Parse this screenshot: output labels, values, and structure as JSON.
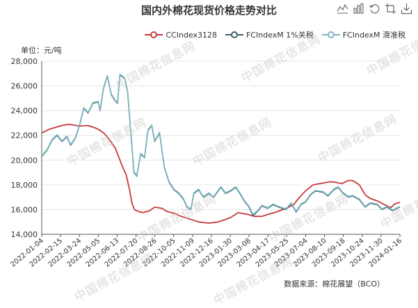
{
  "title": "国内外棉花现货价格走势对比",
  "unit_label": "单位：元/吨",
  "source_label": "数据来源：棉花展望（BCO）",
  "watermark_text": "中国棉花信息网",
  "toolbox": [
    "line-chart-icon",
    "bar-chart-icon",
    "restore-icon",
    "crop-icon",
    "download-icon"
  ],
  "legend": [
    {
      "name": "CCIndex3128",
      "color": "#c8383d"
    },
    {
      "name": "FCIndexM 1%关税",
      "color": "#3f5d6b"
    },
    {
      "name": "FCIndexM 滑准税",
      "color": "#7ab8c2"
    }
  ],
  "chart_data": {
    "type": "line",
    "title": "国内外棉花现货价格走势对比",
    "ylabel": "单位：元/吨",
    "ylim": [
      14000,
      28000
    ],
    "yticks": [
      14000,
      16000,
      18000,
      20000,
      22000,
      24000,
      26000,
      28000
    ],
    "ytick_labels": [
      "14,000",
      "16,000",
      "18,000",
      "20,000",
      "22,000",
      "24,000",
      "26,000",
      "28,000"
    ],
    "xlim": [
      "2022-01-04",
      "2024-01-16"
    ],
    "xtick_labels": [
      "2022-01-04",
      "2022-02-15",
      "2022-03-24",
      "2022-05-05",
      "2022-06-13",
      "2022-07-20",
      "2022-08-26",
      "2022-10-05",
      "2022-11-09",
      "2022-12-16",
      "2023-01-30",
      "2023-03-08",
      "2023-04-17",
      "2023-05-25",
      "2023-07-04",
      "2023-08-10",
      "2023-09-18",
      "2023-10-24",
      "2023-11-30",
      "2024-01-16"
    ],
    "grid": true,
    "legend_position": "top-right",
    "series": [
      {
        "name": "CCIndex3128",
        "color": "#c8383d",
        "points": [
          [
            "2022-01-04",
            22200
          ],
          [
            "2022-01-20",
            22500
          ],
          [
            "2022-02-15",
            22800
          ],
          [
            "2022-03-01",
            22900
          ],
          [
            "2022-03-24",
            22750
          ],
          [
            "2022-04-10",
            22800
          ],
          [
            "2022-04-25",
            22600
          ],
          [
            "2022-05-05",
            22400
          ],
          [
            "2022-05-15",
            22100
          ],
          [
            "2022-05-25",
            21600
          ],
          [
            "2022-06-05",
            21000
          ],
          [
            "2022-06-13",
            20200
          ],
          [
            "2022-06-20",
            19500
          ],
          [
            "2022-06-28",
            18800
          ],
          [
            "2022-07-05",
            17600
          ],
          [
            "2022-07-10",
            16500
          ],
          [
            "2022-07-15",
            16000
          ],
          [
            "2022-07-20",
            15900
          ],
          [
            "2022-08-01",
            15750
          ],
          [
            "2022-08-15",
            15900
          ],
          [
            "2022-08-26",
            16200
          ],
          [
            "2022-09-10",
            16100
          ],
          [
            "2022-09-20",
            15850
          ],
          [
            "2022-10-05",
            15700
          ],
          [
            "2022-10-20",
            15450
          ],
          [
            "2022-11-09",
            15200
          ],
          [
            "2022-11-25",
            15000
          ],
          [
            "2022-12-16",
            14900
          ],
          [
            "2023-01-05",
            15000
          ],
          [
            "2023-01-30",
            15350
          ],
          [
            "2023-02-15",
            15750
          ],
          [
            "2023-03-08",
            15600
          ],
          [
            "2023-03-20",
            15450
          ],
          [
            "2023-04-05",
            15450
          ],
          [
            "2023-04-17",
            15600
          ],
          [
            "2023-05-05",
            15800
          ],
          [
            "2023-05-25",
            16100
          ],
          [
            "2023-06-10",
            16400
          ],
          [
            "2023-06-20",
            16900
          ],
          [
            "2023-07-04",
            17500
          ],
          [
            "2023-07-20",
            18000
          ],
          [
            "2023-08-10",
            18150
          ],
          [
            "2023-08-25",
            18250
          ],
          [
            "2023-09-05",
            18200
          ],
          [
            "2023-09-18",
            18100
          ],
          [
            "2023-10-01",
            18350
          ],
          [
            "2023-10-10",
            18350
          ],
          [
            "2023-10-24",
            18000
          ],
          [
            "2023-11-05",
            17200
          ],
          [
            "2023-11-15",
            16900
          ],
          [
            "2023-11-30",
            16700
          ],
          [
            "2023-12-15",
            16400
          ],
          [
            "2023-12-28",
            16150
          ],
          [
            "2024-01-05",
            16450
          ],
          [
            "2024-01-16",
            16600
          ]
        ]
      },
      {
        "name": "FCIndexM 1%关税",
        "color": "#3f5d6b",
        "points": [
          [
            "2022-01-04",
            20300
          ],
          [
            "2022-01-15",
            20800
          ],
          [
            "2022-01-25",
            21600
          ],
          [
            "2022-02-05",
            22000
          ],
          [
            "2022-02-15",
            21500
          ],
          [
            "2022-02-25",
            21900
          ],
          [
            "2022-03-05",
            21200
          ],
          [
            "2022-03-15",
            21800
          ],
          [
            "2022-03-24",
            22900
          ],
          [
            "2022-04-01",
            24200
          ],
          [
            "2022-04-10",
            23800
          ],
          [
            "2022-04-20",
            24600
          ],
          [
            "2022-05-01",
            24700
          ],
          [
            "2022-05-05",
            24000
          ],
          [
            "2022-05-12",
            25800
          ],
          [
            "2022-05-20",
            26800
          ],
          [
            "2022-05-28",
            25300
          ],
          [
            "2022-06-05",
            24800
          ],
          [
            "2022-06-10",
            24600
          ],
          [
            "2022-06-15",
            26900
          ],
          [
            "2022-06-25",
            26600
          ],
          [
            "2022-07-01",
            25500
          ],
          [
            "2022-07-08",
            22000
          ],
          [
            "2022-07-14",
            19000
          ],
          [
            "2022-07-20",
            18700
          ],
          [
            "2022-07-28",
            20500
          ],
          [
            "2022-08-05",
            20200
          ],
          [
            "2022-08-12",
            22400
          ],
          [
            "2022-08-20",
            22800
          ],
          [
            "2022-08-26",
            21500
          ],
          [
            "2022-09-05",
            22200
          ],
          [
            "2022-09-15",
            19400
          ],
          [
            "2022-09-25",
            18200
          ],
          [
            "2022-10-05",
            17600
          ],
          [
            "2022-10-15",
            17300
          ],
          [
            "2022-10-25",
            16800
          ],
          [
            "2022-11-01",
            16200
          ],
          [
            "2022-11-09",
            16000
          ],
          [
            "2022-11-15",
            17300
          ],
          [
            "2022-11-25",
            17600
          ],
          [
            "2022-12-05",
            17000
          ],
          [
            "2022-12-16",
            17300
          ],
          [
            "2022-12-26",
            17000
          ],
          [
            "2023-01-10",
            17800
          ],
          [
            "2023-01-20",
            17300
          ],
          [
            "2023-01-30",
            17500
          ],
          [
            "2023-02-10",
            17800
          ],
          [
            "2023-02-20",
            17200
          ],
          [
            "2023-03-01",
            16600
          ],
          [
            "2023-03-08",
            16300
          ],
          [
            "2023-03-18",
            15500
          ],
          [
            "2023-03-28",
            15900
          ],
          [
            "2023-04-05",
            16300
          ],
          [
            "2023-04-17",
            16100
          ],
          [
            "2023-04-28",
            16400
          ],
          [
            "2023-05-10",
            16200
          ],
          [
            "2023-05-25",
            16000
          ],
          [
            "2023-06-05",
            16500
          ],
          [
            "2023-06-15",
            15800
          ],
          [
            "2023-06-25",
            16400
          ],
          [
            "2023-07-04",
            16600
          ],
          [
            "2023-07-15",
            17200
          ],
          [
            "2023-07-25",
            17500
          ],
          [
            "2023-08-10",
            17400
          ],
          [
            "2023-08-20",
            17100
          ],
          [
            "2023-09-01",
            17600
          ],
          [
            "2023-09-10",
            17800
          ],
          [
            "2023-09-18",
            17400
          ],
          [
            "2023-10-01",
            17000
          ],
          [
            "2023-10-10",
            17100
          ],
          [
            "2023-10-24",
            16800
          ],
          [
            "2023-11-05",
            16200
          ],
          [
            "2023-11-15",
            16500
          ],
          [
            "2023-11-30",
            16400
          ],
          [
            "2023-12-10",
            16000
          ],
          [
            "2023-12-20",
            16200
          ],
          [
            "2024-01-01",
            15900
          ],
          [
            "2024-01-10",
            16100
          ],
          [
            "2024-01-16",
            16200
          ]
        ]
      },
      {
        "name": "FCIndexM 滑准税",
        "color": "#7ab8c2",
        "points": [
          [
            "2022-01-04",
            20350
          ],
          [
            "2022-01-15",
            20850
          ],
          [
            "2022-01-25",
            21650
          ],
          [
            "2022-02-05",
            22050
          ],
          [
            "2022-02-15",
            21550
          ],
          [
            "2022-02-25",
            21950
          ],
          [
            "2022-03-05",
            21250
          ],
          [
            "2022-03-15",
            21850
          ],
          [
            "2022-03-24",
            22950
          ],
          [
            "2022-04-01",
            24250
          ],
          [
            "2022-04-10",
            23850
          ],
          [
            "2022-04-20",
            24650
          ],
          [
            "2022-05-01",
            24750
          ],
          [
            "2022-05-05",
            24050
          ],
          [
            "2022-05-12",
            25850
          ],
          [
            "2022-05-20",
            26850
          ],
          [
            "2022-05-28",
            25350
          ],
          [
            "2022-06-05",
            24850
          ],
          [
            "2022-06-10",
            24650
          ],
          [
            "2022-06-15",
            26950
          ],
          [
            "2022-06-25",
            26650
          ],
          [
            "2022-07-01",
            25550
          ],
          [
            "2022-07-08",
            22050
          ],
          [
            "2022-07-14",
            19050
          ],
          [
            "2022-07-20",
            18750
          ],
          [
            "2022-07-28",
            20550
          ],
          [
            "2022-08-05",
            20250
          ],
          [
            "2022-08-12",
            22450
          ],
          [
            "2022-08-20",
            22850
          ],
          [
            "2022-08-26",
            21550
          ],
          [
            "2022-09-05",
            22250
          ],
          [
            "2022-09-15",
            19450
          ],
          [
            "2022-09-25",
            18250
          ],
          [
            "2022-10-05",
            17650
          ],
          [
            "2022-10-15",
            17350
          ],
          [
            "2022-10-25",
            16850
          ],
          [
            "2022-11-01",
            16250
          ],
          [
            "2022-11-09",
            16050
          ],
          [
            "2022-11-15",
            17350
          ],
          [
            "2022-11-25",
            17650
          ],
          [
            "2022-12-05",
            17050
          ],
          [
            "2022-12-16",
            17350
          ],
          [
            "2022-12-26",
            17050
          ],
          [
            "2023-01-10",
            17850
          ],
          [
            "2023-01-20",
            17350
          ],
          [
            "2023-01-30",
            17550
          ],
          [
            "2023-02-10",
            17850
          ],
          [
            "2023-02-20",
            17250
          ],
          [
            "2023-03-01",
            16650
          ],
          [
            "2023-03-08",
            16350
          ],
          [
            "2023-03-18",
            15600
          ],
          [
            "2023-03-28",
            15950
          ],
          [
            "2023-04-05",
            16350
          ],
          [
            "2023-04-17",
            16150
          ],
          [
            "2023-04-28",
            16450
          ],
          [
            "2023-05-10",
            16250
          ],
          [
            "2023-05-25",
            16050
          ],
          [
            "2023-06-05",
            16550
          ],
          [
            "2023-06-15",
            15850
          ],
          [
            "2023-06-25",
            16450
          ],
          [
            "2023-07-04",
            16650
          ],
          [
            "2023-07-15",
            17250
          ],
          [
            "2023-07-25",
            17550
          ],
          [
            "2023-08-10",
            17450
          ],
          [
            "2023-08-20",
            17150
          ],
          [
            "2023-09-01",
            17650
          ],
          [
            "2023-09-10",
            17850
          ],
          [
            "2023-09-18",
            17450
          ],
          [
            "2023-10-01",
            17050
          ],
          [
            "2023-10-10",
            17150
          ],
          [
            "2023-10-24",
            16850
          ],
          [
            "2023-11-05",
            16250
          ],
          [
            "2023-11-15",
            16550
          ],
          [
            "2023-11-30",
            16450
          ],
          [
            "2023-12-10",
            16050
          ],
          [
            "2023-12-20",
            16250
          ],
          [
            "2024-01-01",
            15950
          ],
          [
            "2024-01-10",
            16150
          ],
          [
            "2024-01-16",
            16250
          ]
        ]
      }
    ]
  }
}
